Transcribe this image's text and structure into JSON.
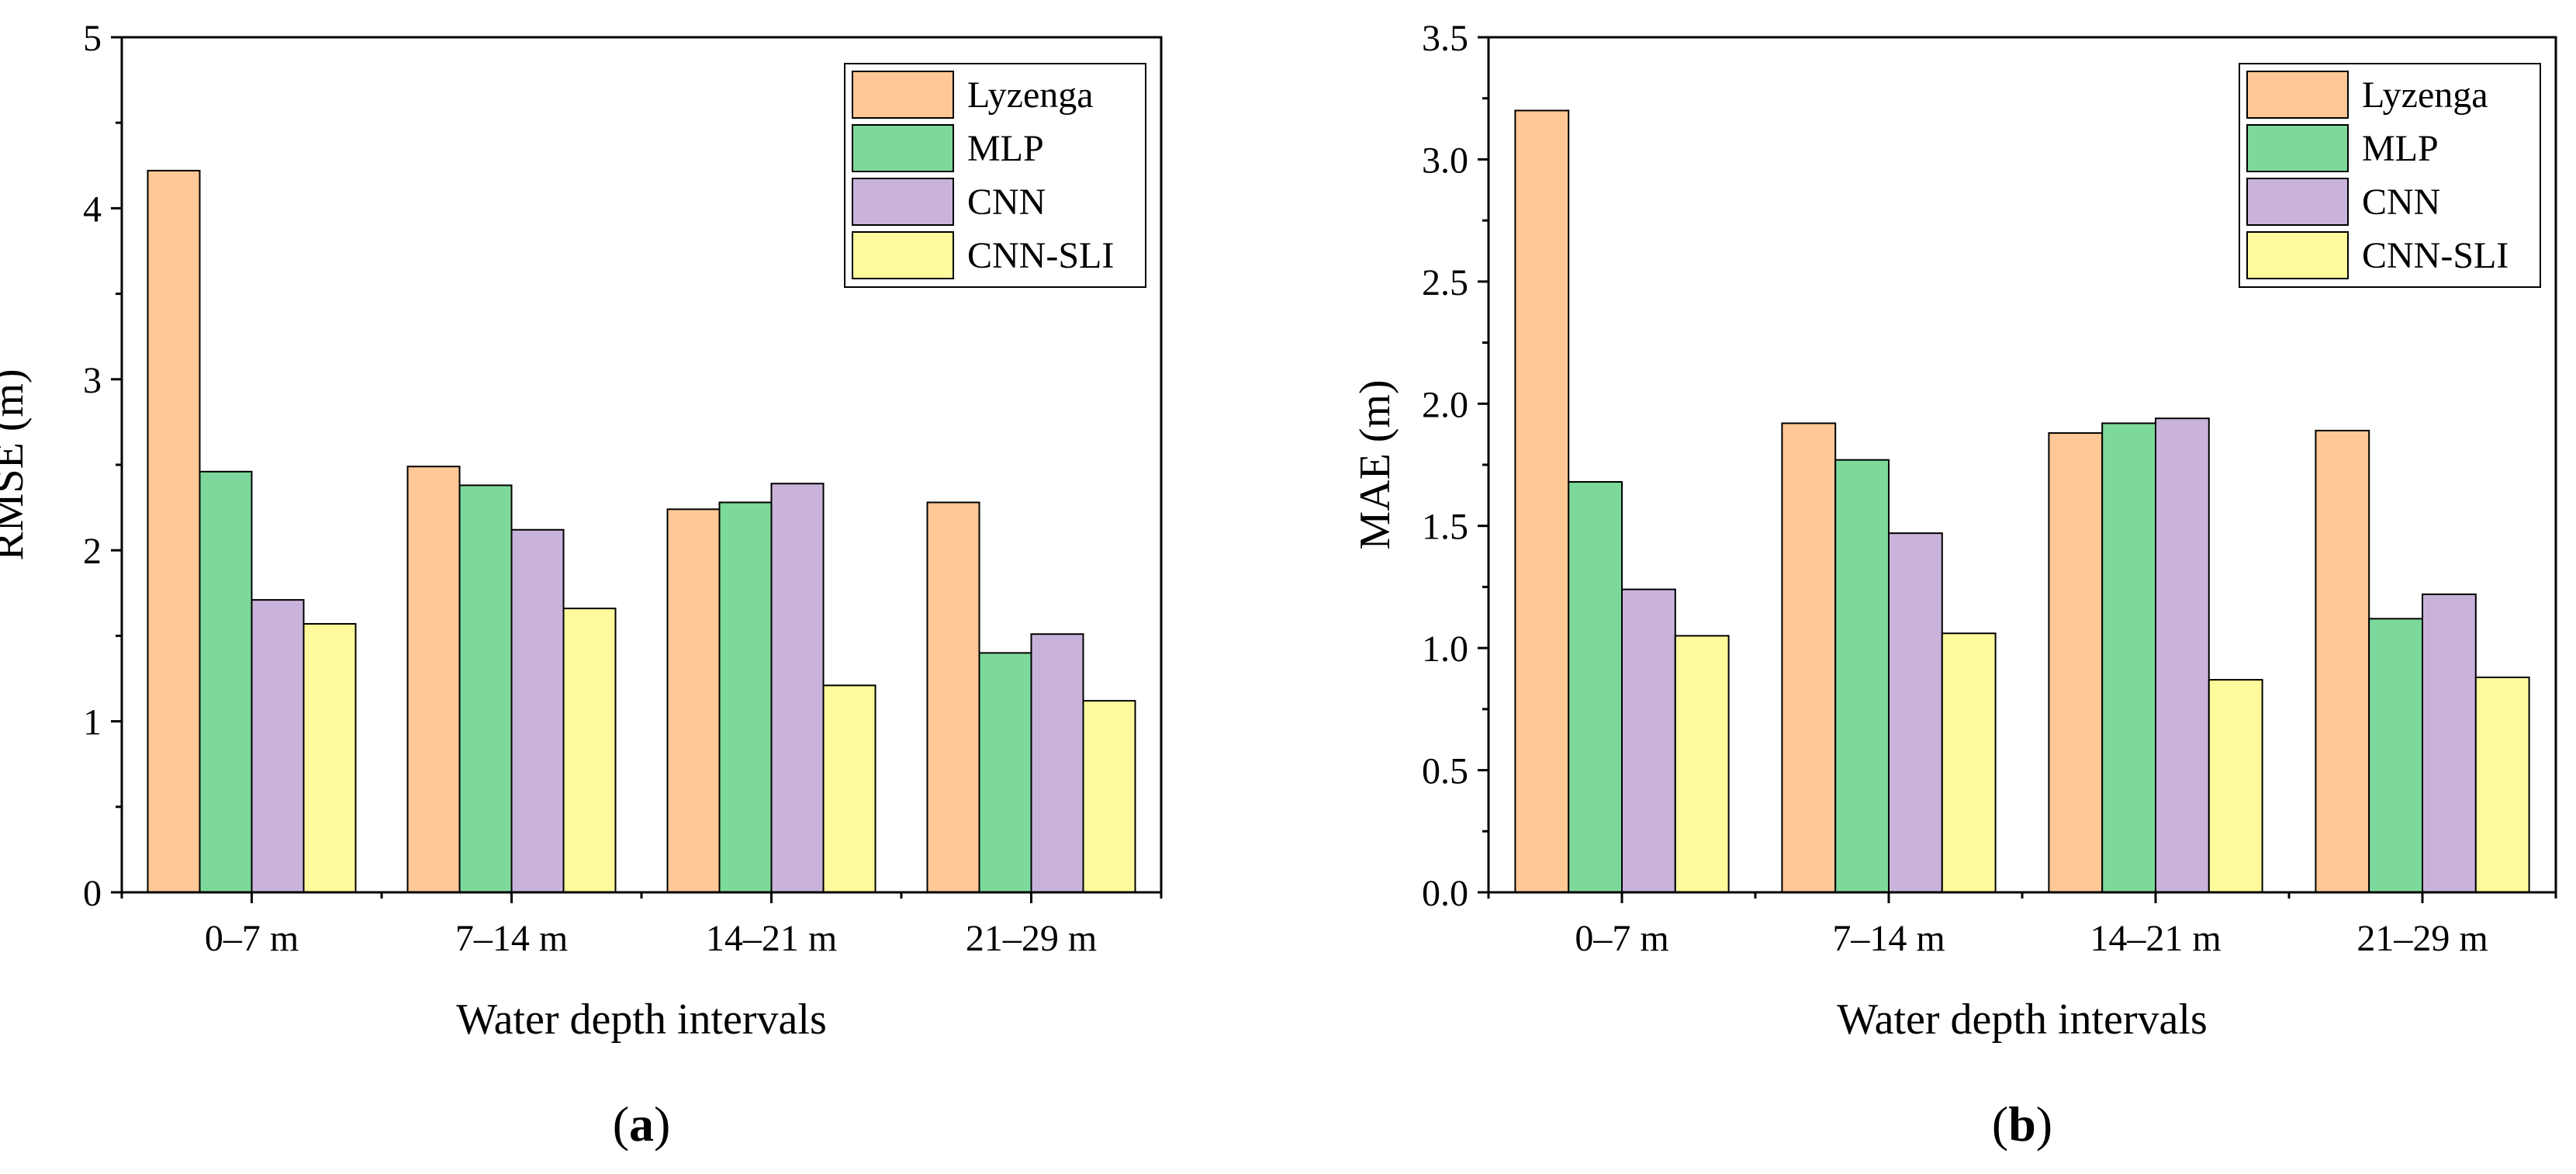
{
  "chart_data": [
    {
      "type": "bar",
      "panel_label": "a",
      "categories": [
        "0–7 m",
        "7–14 m",
        "14–21 m",
        "21–29 m"
      ],
      "xlabel": "Water depth intervals",
      "ylabel": "RMSE (m)",
      "ylim": [
        0,
        5
      ],
      "yticks": [
        "0",
        "1",
        "2",
        "3",
        "4",
        "5"
      ],
      "ytick_values": [
        0,
        1,
        2,
        3,
        4,
        5
      ],
      "minor_step": 0.5,
      "legend_position": "top-right",
      "grid": false,
      "series": [
        {
          "name": "Lyzenga",
          "values": [
            4.22,
            2.49,
            2.24,
            2.28
          ]
        },
        {
          "name": "MLP",
          "values": [
            2.46,
            2.38,
            2.28,
            1.4
          ]
        },
        {
          "name": "CNN",
          "values": [
            1.71,
            2.12,
            2.39,
            1.51
          ]
        },
        {
          "name": "CNN-SLI",
          "values": [
            1.57,
            1.66,
            1.21,
            1.12
          ]
        }
      ]
    },
    {
      "type": "bar",
      "panel_label": "b",
      "categories": [
        "0–7 m",
        "7–14 m",
        "14–21 m",
        "21–29 m"
      ],
      "xlabel": "Water depth intervals",
      "ylabel": "MAE (m)",
      "ylim": [
        0,
        3.5
      ],
      "yticks": [
        "0.0",
        "0.5",
        "1.0",
        "1.5",
        "2.0",
        "2.5",
        "3.0",
        "3.5"
      ],
      "ytick_values": [
        0,
        0.5,
        1.0,
        1.5,
        2.0,
        2.5,
        3.0,
        3.5
      ],
      "minor_step": 0.25,
      "legend_position": "top-right",
      "grid": false,
      "series": [
        {
          "name": "Lyzenga",
          "values": [
            3.2,
            1.92,
            1.88,
            1.89
          ]
        },
        {
          "name": "MLP",
          "values": [
            1.68,
            1.77,
            1.92,
            1.12
          ]
        },
        {
          "name": "CNN",
          "values": [
            1.24,
            1.47,
            1.94,
            1.22
          ]
        },
        {
          "name": "CNN-SLI",
          "values": [
            1.05,
            1.06,
            0.87,
            0.88
          ]
        }
      ]
    }
  ],
  "colors": {
    "Lyzenga": "#FFC896",
    "MLP": "#7DD99B",
    "CNN": "#C9B3DB",
    "CNN-SLI": "#FFFA9B"
  }
}
